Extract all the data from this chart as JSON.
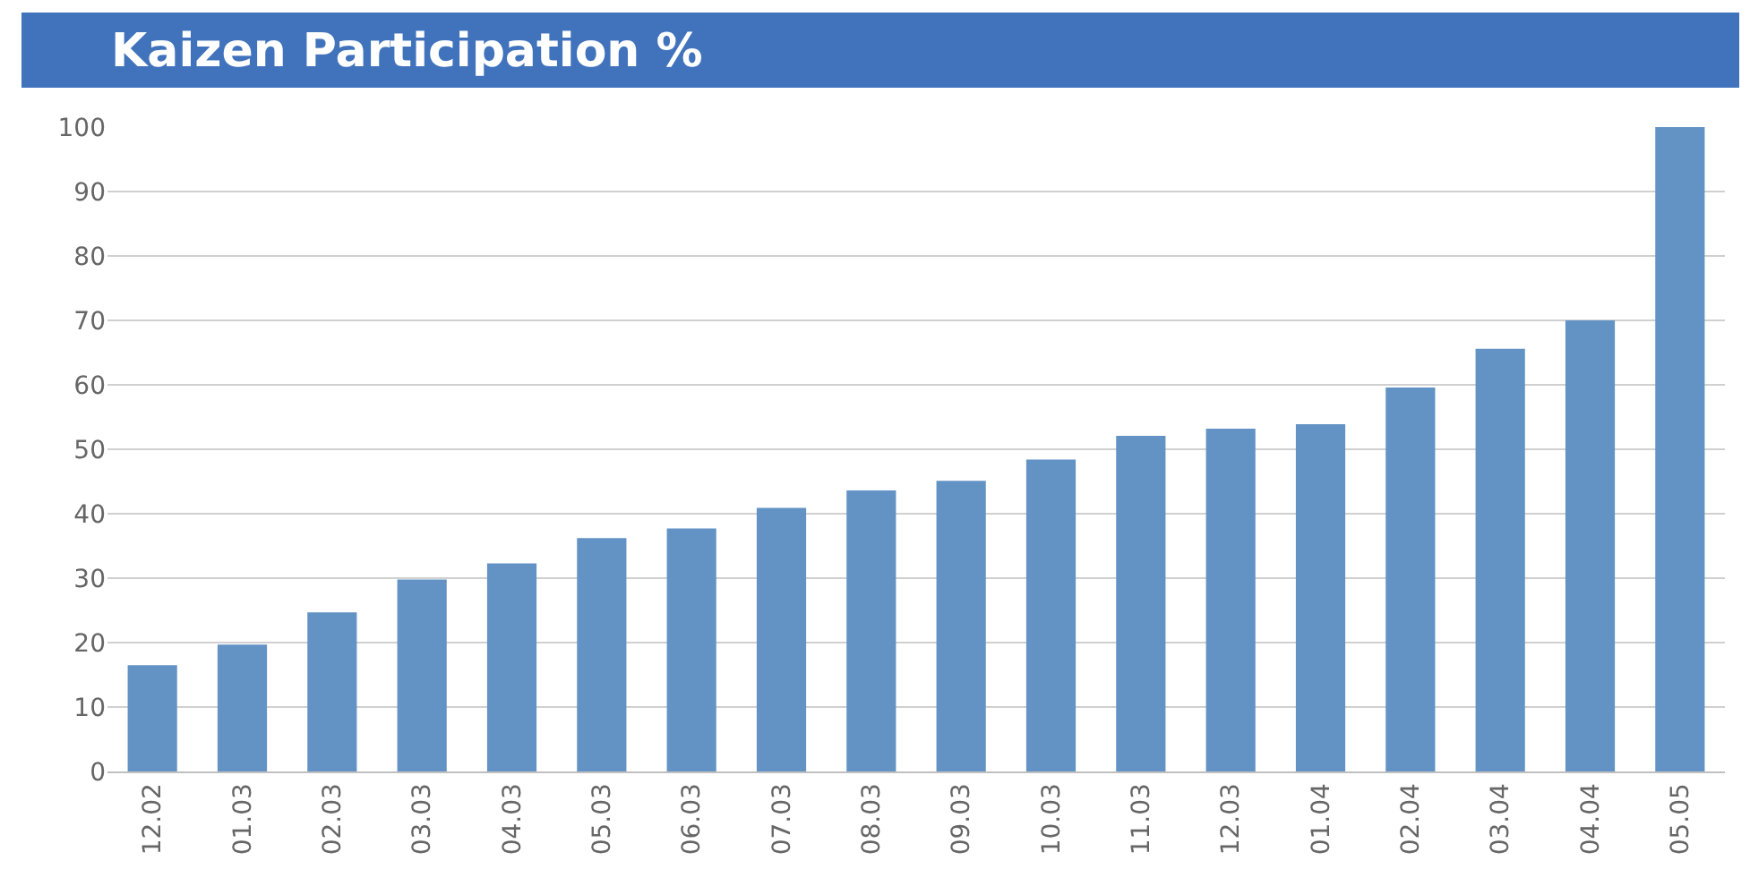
{
  "chart_data": {
    "type": "bar",
    "title": "Kaizen Participation %",
    "categories": [
      "12.02",
      "01.03",
      "02.03",
      "03.03",
      "04.03",
      "05.03",
      "06.03",
      "07.03",
      "08.03",
      "09.03",
      "10.03",
      "11.03",
      "12.03",
      "01.04",
      "02.04",
      "03.04",
      "04.04",
      "05.05"
    ],
    "values": [
      16.5,
      19.7,
      24.7,
      29.8,
      32.3,
      36.2,
      37.7,
      40.9,
      43.6,
      45.1,
      48.4,
      52.1,
      53.2,
      53.9,
      59.6,
      65.6,
      70,
      100
    ],
    "color": "#6393c4",
    "ylim": [
      0,
      100
    ],
    "yticks": [
      0,
      10,
      20,
      30,
      40,
      50,
      60,
      70,
      80,
      90,
      100
    ],
    "grid": "y",
    "legend": false
  }
}
